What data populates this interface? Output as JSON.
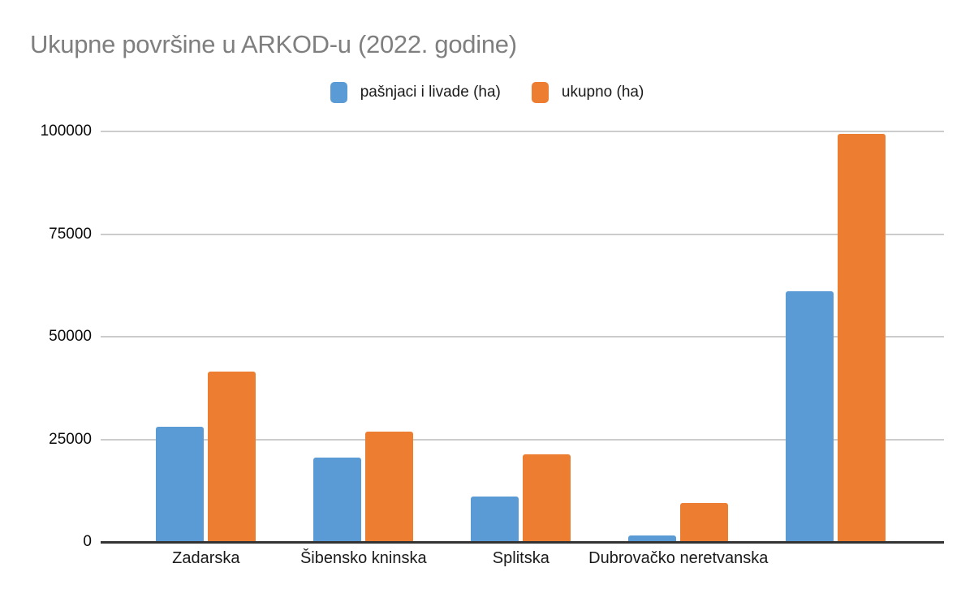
{
  "title": "Ukupne površine u ARKOD-u (2022. godine)",
  "legend": [
    {
      "label": "pašnjaci i livade (ha)",
      "color": "#5B9BD5"
    },
    {
      "label": "ukupno (ha)",
      "color": "#ED7D31"
    }
  ],
  "colors": {
    "series_blue": "#5B9BD5",
    "series_orange": "#ED7D31",
    "title_gray": "#7f7f7f",
    "gridline": "#cccccc",
    "axis_line": "#333333",
    "background": "#ffffff"
  },
  "chart_data": {
    "type": "bar",
    "title": "Ukupne površine u ARKOD-u (2022. godine)",
    "categories": [
      "Zadarska",
      "Šibensko kninska",
      "Splitska",
      "Dubrovačko neretvanska",
      ""
    ],
    "series": [
      {
        "name": "pašnjaci i livade (ha)",
        "color": "#5B9BD5",
        "values": [
          28000,
          20600,
          11100,
          1600,
          61000
        ]
      },
      {
        "name": "ukupno (ha)",
        "color": "#ED7D31",
        "values": [
          41500,
          26900,
          21400,
          9500,
          99400
        ]
      }
    ],
    "xlabel": "",
    "ylabel": "",
    "ylim": [
      0,
      100000
    ],
    "yticks": [
      0,
      25000,
      50000,
      75000,
      100000
    ],
    "ytick_labels": [
      "0",
      "25000",
      "50000",
      "75000",
      "100000"
    ],
    "grid": true,
    "legend_position": "top-center"
  }
}
